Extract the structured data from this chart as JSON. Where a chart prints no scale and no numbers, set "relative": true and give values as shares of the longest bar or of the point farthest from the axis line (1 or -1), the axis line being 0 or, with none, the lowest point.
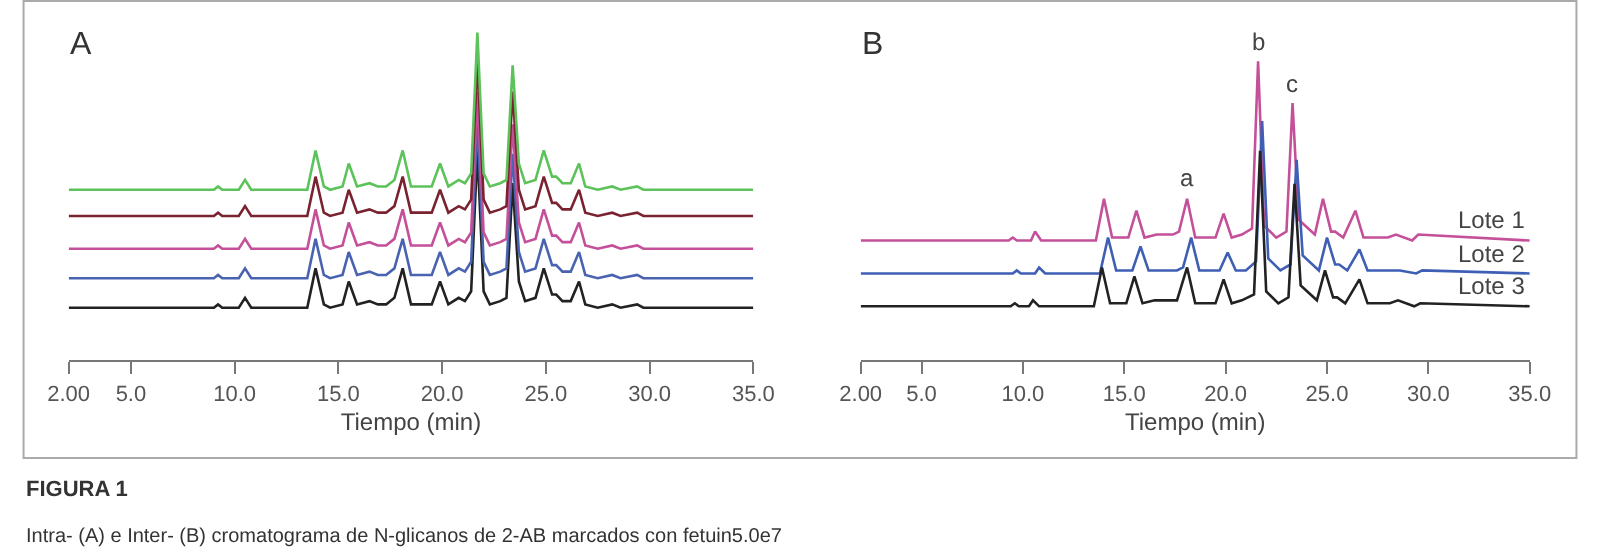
{
  "chart_data": [
    {
      "type": "line",
      "title": "A",
      "xlabel": "Tiempo (min)",
      "relative": true,
      "line_style": "solid",
      "xlim": [
        2.0,
        35.0
      ],
      "xticks": [
        {
          "value": 2.0,
          "label": "2.00"
        },
        {
          "value": 5,
          "label": "5.0"
        },
        {
          "value": 10,
          "label": "10.0"
        },
        {
          "value": 15,
          "label": "15.0"
        },
        {
          "value": 20,
          "label": "20.0"
        },
        {
          "value": 25,
          "label": "25.0"
        },
        {
          "value": 30,
          "label": "30.0"
        },
        {
          "value": 35,
          "label": "35.0"
        }
      ],
      "x": [
        2.0,
        9.0,
        9.2,
        9.4,
        10.2,
        10.5,
        10.8,
        13.5,
        13.9,
        14.3,
        14.6,
        15.2,
        15.5,
        15.9,
        16.5,
        16.9,
        17.3,
        17.7,
        18.1,
        18.5,
        19.5,
        19.9,
        20.3,
        20.8,
        21.1,
        21.4,
        21.7,
        22.0,
        22.3,
        22.8,
        23.1,
        23.4,
        23.7,
        24.0,
        24.5,
        24.9,
        25.3,
        25.5,
        25.8,
        26.2,
        26.6,
        26.9,
        27.5,
        28.2,
        28.6,
        29.4,
        29.7,
        35.0
      ],
      "series": [
        {
          "color": "#222222",
          "values": [
            0.16,
            0.16,
            0.17,
            0.16,
            0.16,
            0.19,
            0.16,
            0.16,
            0.28,
            0.17,
            0.16,
            0.17,
            0.24,
            0.17,
            0.18,
            0.17,
            0.17,
            0.19,
            0.28,
            0.17,
            0.17,
            0.24,
            0.17,
            0.19,
            0.18,
            0.21,
            0.64,
            0.21,
            0.17,
            0.18,
            0.19,
            0.54,
            0.24,
            0.18,
            0.19,
            0.28,
            0.2,
            0.2,
            0.18,
            0.18,
            0.24,
            0.17,
            0.16,
            0.17,
            0.16,
            0.17,
            0.16,
            0.16
          ]
        },
        {
          "color": "#4a63b0",
          "values": [
            0.25,
            0.25,
            0.26,
            0.25,
            0.25,
            0.28,
            0.25,
            0.25,
            0.37,
            0.26,
            0.25,
            0.26,
            0.33,
            0.26,
            0.27,
            0.26,
            0.26,
            0.28,
            0.37,
            0.26,
            0.26,
            0.33,
            0.26,
            0.28,
            0.27,
            0.3,
            0.73,
            0.3,
            0.26,
            0.27,
            0.28,
            0.63,
            0.33,
            0.27,
            0.28,
            0.37,
            0.29,
            0.29,
            0.27,
            0.27,
            0.33,
            0.26,
            0.25,
            0.26,
            0.25,
            0.26,
            0.25,
            0.25
          ]
        },
        {
          "color": "#c4509a",
          "values": [
            0.34,
            0.34,
            0.35,
            0.34,
            0.34,
            0.37,
            0.34,
            0.34,
            0.46,
            0.35,
            0.34,
            0.35,
            0.42,
            0.35,
            0.36,
            0.35,
            0.35,
            0.37,
            0.46,
            0.35,
            0.35,
            0.42,
            0.35,
            0.37,
            0.36,
            0.39,
            0.82,
            0.39,
            0.35,
            0.36,
            0.37,
            0.72,
            0.42,
            0.36,
            0.37,
            0.46,
            0.38,
            0.38,
            0.36,
            0.36,
            0.42,
            0.35,
            0.34,
            0.35,
            0.34,
            0.35,
            0.34,
            0.34
          ]
        },
        {
          "color": "#7a2330",
          "values": [
            0.44,
            0.44,
            0.45,
            0.44,
            0.44,
            0.47,
            0.44,
            0.44,
            0.56,
            0.45,
            0.44,
            0.45,
            0.52,
            0.45,
            0.46,
            0.45,
            0.45,
            0.47,
            0.56,
            0.45,
            0.45,
            0.52,
            0.45,
            0.47,
            0.46,
            0.49,
            0.92,
            0.49,
            0.45,
            0.46,
            0.47,
            0.82,
            0.52,
            0.46,
            0.47,
            0.56,
            0.48,
            0.48,
            0.46,
            0.46,
            0.52,
            0.45,
            0.44,
            0.45,
            0.44,
            0.45,
            0.44,
            0.44
          ]
        },
        {
          "color": "#5cc25a",
          "values": [
            0.52,
            0.52,
            0.53,
            0.52,
            0.52,
            0.55,
            0.52,
            0.52,
            0.64,
            0.53,
            0.52,
            0.53,
            0.6,
            0.53,
            0.54,
            0.53,
            0.53,
            0.55,
            0.64,
            0.53,
            0.53,
            0.6,
            0.53,
            0.55,
            0.54,
            0.57,
            1.0,
            0.57,
            0.53,
            0.54,
            0.55,
            0.9,
            0.6,
            0.54,
            0.55,
            0.64,
            0.56,
            0.56,
            0.54,
            0.54,
            0.6,
            0.53,
            0.52,
            0.53,
            0.52,
            0.53,
            0.52,
            0.52
          ]
        }
      ],
      "annotations": [
        "FIGURA 1",
        "Intra- (A) e Inter- (B) cromatograma de N-glicanos de 2-AB marcados con fetuin5.0e7"
      ]
    },
    {
      "type": "line",
      "title": "B",
      "xlabel": "Tiempo (min)",
      "relative": true,
      "line_style": "solid",
      "xlim": [
        2.0,
        35.0
      ],
      "xticks": [
        {
          "value": 2.0,
          "label": "2.00"
        },
        {
          "value": 5,
          "label": "5.0"
        },
        {
          "value": 10,
          "label": "10.0"
        },
        {
          "value": 15,
          "label": "15.0"
        },
        {
          "value": 20,
          "label": "20.0"
        },
        {
          "value": 25,
          "label": "25.0"
        },
        {
          "value": 30,
          "label": "30.0"
        },
        {
          "value": 35,
          "label": "35.0"
        }
      ],
      "series": [
        {
          "name": "Lote 1",
          "color": "#c4509a",
          "x": [
            2.0,
            9.3,
            9.5,
            9.7,
            10.4,
            10.6,
            10.9,
            13.6,
            14.0,
            14.4,
            15.2,
            15.6,
            16.0,
            16.6,
            17.4,
            17.7,
            18.1,
            18.5,
            19.5,
            19.9,
            20.3,
            20.8,
            21.3,
            21.6,
            21.9,
            22.5,
            23.0,
            23.3,
            23.6,
            24.4,
            24.8,
            25.2,
            25.4,
            25.8,
            26.4,
            26.8,
            28.0,
            28.4,
            29.2,
            29.5,
            35.0
          ],
          "values": [
            0.4,
            0.4,
            0.41,
            0.4,
            0.4,
            0.43,
            0.4,
            0.4,
            0.54,
            0.41,
            0.41,
            0.5,
            0.41,
            0.42,
            0.42,
            0.43,
            0.54,
            0.41,
            0.41,
            0.49,
            0.41,
            0.42,
            0.44,
            1.0,
            0.45,
            0.41,
            0.43,
            0.86,
            0.47,
            0.42,
            0.54,
            0.43,
            0.43,
            0.41,
            0.5,
            0.41,
            0.41,
            0.42,
            0.4,
            0.42,
            0.4
          ]
        },
        {
          "name": "Lote 2",
          "color": "#3f5fb5",
          "x": [
            2.0,
            9.5,
            9.7,
            9.9,
            10.6,
            10.8,
            11.1,
            13.8,
            14.2,
            14.6,
            15.4,
            15.8,
            16.2,
            16.8,
            17.6,
            17.9,
            18.3,
            18.7,
            19.7,
            20.1,
            20.5,
            21.0,
            21.5,
            21.8,
            22.1,
            22.7,
            23.2,
            23.5,
            23.8,
            24.6,
            25.0,
            25.4,
            25.6,
            26.0,
            26.6,
            27.0,
            28.2,
            28.6,
            29.4,
            29.7,
            35.0
          ],
          "values": [
            0.29,
            0.29,
            0.3,
            0.29,
            0.29,
            0.31,
            0.29,
            0.29,
            0.41,
            0.3,
            0.3,
            0.38,
            0.3,
            0.3,
            0.3,
            0.31,
            0.41,
            0.3,
            0.3,
            0.36,
            0.3,
            0.3,
            0.33,
            0.8,
            0.34,
            0.3,
            0.32,
            0.67,
            0.35,
            0.3,
            0.41,
            0.32,
            0.32,
            0.3,
            0.37,
            0.3,
            0.3,
            0.3,
            0.29,
            0.3,
            0.29
          ]
        },
        {
          "name": "Lote 3",
          "color": "#222222",
          "x": [
            2.0,
            9.4,
            9.6,
            9.8,
            10.3,
            10.5,
            10.8,
            13.5,
            13.9,
            14.3,
            15.1,
            15.5,
            15.9,
            16.5,
            17.3,
            17.6,
            18.1,
            18.5,
            19.5,
            19.9,
            20.3,
            20.8,
            21.4,
            21.7,
            22.0,
            22.6,
            23.1,
            23.4,
            23.7,
            24.5,
            24.9,
            25.3,
            25.5,
            25.9,
            26.6,
            27.0,
            28.1,
            28.5,
            29.3,
            29.6,
            35.0
          ],
          "values": [
            0.18,
            0.18,
            0.19,
            0.18,
            0.18,
            0.2,
            0.18,
            0.18,
            0.31,
            0.19,
            0.19,
            0.28,
            0.19,
            0.2,
            0.2,
            0.2,
            0.31,
            0.19,
            0.19,
            0.27,
            0.19,
            0.2,
            0.22,
            0.7,
            0.23,
            0.19,
            0.21,
            0.59,
            0.25,
            0.2,
            0.3,
            0.21,
            0.21,
            0.19,
            0.27,
            0.19,
            0.19,
            0.2,
            0.18,
            0.19,
            0.18
          ]
        }
      ],
      "annotations": [
        {
          "text": "a",
          "x": 18.1,
          "y": 0.54
        },
        {
          "text": "b",
          "x": 21.6,
          "y": 1.0
        },
        {
          "text": "c",
          "x": 23.3,
          "y": 0.86
        }
      ]
    }
  ]
}
